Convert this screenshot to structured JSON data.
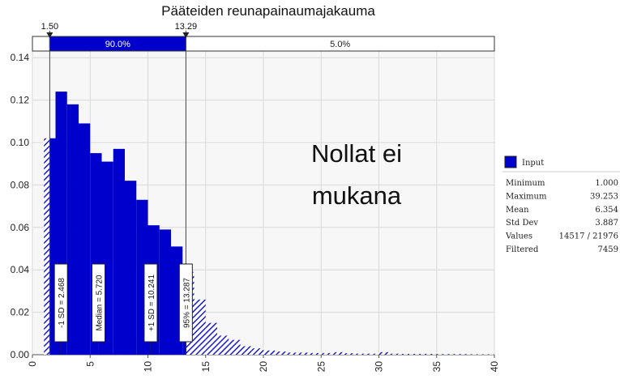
{
  "chart_data": {
    "type": "bar",
    "title": "Pääteiden  reunapainaumajakauma",
    "xlabel": "",
    "ylabel": "",
    "xlim": [
      0,
      40
    ],
    "ylim": [
      0,
      0.15
    ],
    "grid": true,
    "x_ticks": [
      "0",
      "5",
      "10",
      "15",
      "20",
      "25",
      "30",
      "35",
      "40"
    ],
    "y_ticks": [
      "0.00",
      "0.02",
      "0.04",
      "0.06",
      "0.08",
      "0.10",
      "0.12",
      "0.14"
    ],
    "bin_width": 1,
    "bins_left": [
      1,
      2,
      3,
      4,
      5,
      6,
      7,
      8,
      9,
      10,
      11,
      12,
      13,
      14,
      15,
      16,
      17,
      18,
      19,
      20,
      21,
      22,
      23,
      24,
      25,
      26,
      27,
      28,
      29,
      30,
      31,
      32,
      33,
      34,
      35,
      36,
      37,
      38,
      39
    ],
    "series": [
      {
        "name": "Input",
        "color": "#0000cc",
        "values": [
          0.102,
          0.124,
          0.118,
          0.109,
          0.095,
          0.091,
          0.097,
          0.082,
          0.073,
          0.061,
          0.059,
          0.051,
          0.039,
          0.026,
          0.015,
          0.009,
          0.007,
          0.004,
          0.003,
          0.002,
          0.0015,
          0.001,
          0.001,
          0.0008,
          0.0008,
          0.0012,
          0.0007,
          0.0005,
          0.0005,
          0.0012,
          0.0005,
          0.0004,
          0.0004,
          0.0004,
          0.0003,
          0.0003,
          0.0003,
          0.0002,
          0.0002
        ]
      }
    ],
    "delimiters": {
      "left": {
        "value": 1.5,
        "label": "1.50"
      },
      "right": {
        "value": 13.29,
        "label": "13.29"
      }
    },
    "bands": [
      {
        "label": "90.0%",
        "color": "#0000cc"
      },
      {
        "label": "5.0%",
        "color": "#ffffff"
      }
    ],
    "markers": [
      {
        "x": 2.468,
        "label": "-1 SD = 2.468"
      },
      {
        "x": 5.72,
        "label": "Median = 5.720"
      },
      {
        "x": 10.241,
        "label": "+1 SD = 10.241"
      },
      {
        "x": 13.287,
        "label": "95% = 13.287"
      }
    ],
    "annotation": {
      "line1": "Nollat ei",
      "line2": "mukana"
    },
    "legend": {
      "position": "right",
      "series_label": "Input",
      "stats": [
        {
          "label": "Minimum",
          "value": "1.000"
        },
        {
          "label": "Maximum",
          "value": "39.253"
        },
        {
          "label": "Mean",
          "value": "6.354"
        },
        {
          "label": "Std Dev",
          "value": "3.887"
        },
        {
          "label": "Values",
          "value": "14517 / 21976"
        },
        {
          "label": "Filtered",
          "value": "7459"
        }
      ]
    }
  }
}
